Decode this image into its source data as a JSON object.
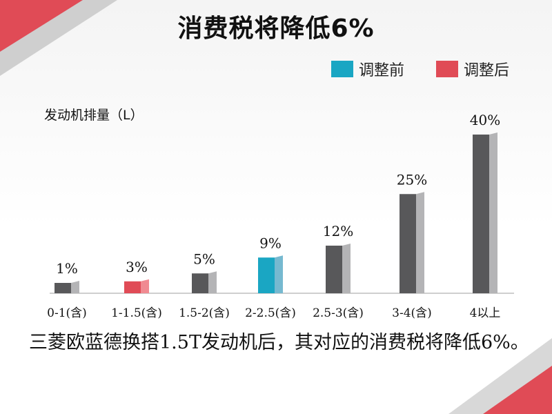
{
  "title": "消费税将降低6%",
  "legend": [
    {
      "label": "调整前",
      "color": "#1aa6c3"
    },
    {
      "label": "调整后",
      "color": "#e04b56"
    }
  ],
  "caption": "三菱欧蓝德换搭1.5T发动机后，其对应的消费税将降低6%。",
  "chart_data": {
    "type": "bar",
    "xlabel": "发动机排量（L）",
    "ylabel": "",
    "categories": [
      "0-1(含)",
      "1-1.5(含)",
      "1.5-2(含)",
      "2-2.5(含)",
      "2.5-3(含)",
      "3-4(含)",
      "4以上"
    ],
    "values": [
      1,
      3,
      5,
      9,
      12,
      25,
      40
    ],
    "value_labels": [
      "1%",
      "3%",
      "5%",
      "9%",
      "12%",
      "25%",
      "40%"
    ],
    "bar_colors": [
      "#58585a",
      "#e04b56",
      "#58585a",
      "#1aa6c3",
      "#58585a",
      "#58585a",
      "#58585a"
    ],
    "ylim": [
      0,
      40
    ],
    "grid": false,
    "legend_position": "top-right"
  }
}
